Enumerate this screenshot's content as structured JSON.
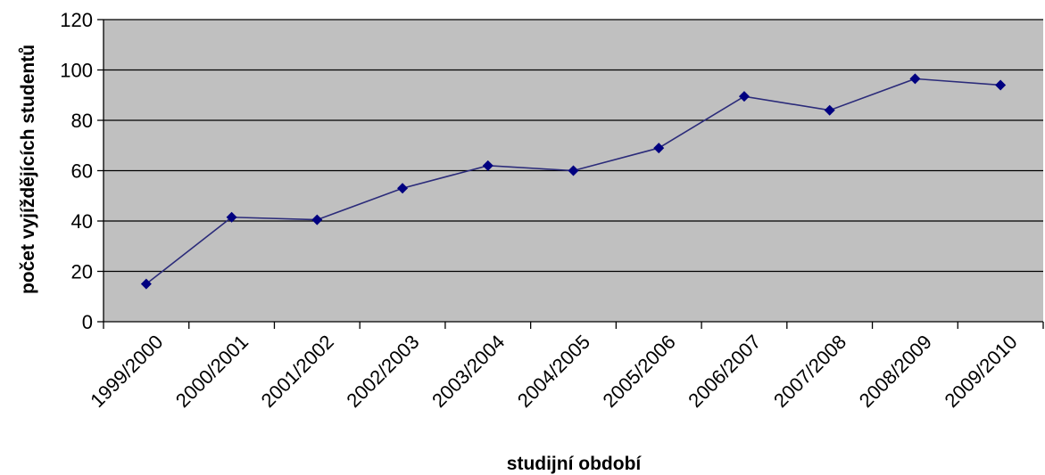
{
  "chart_data": {
    "type": "line",
    "title": "",
    "xlabel": "studijní období",
    "ylabel": "počet vyjíždějících studentů",
    "categories": [
      "1999/2000",
      "2000/2001",
      "2001/2002",
      "2002/2003",
      "2003/2004",
      "2004/2005",
      "2005/2006",
      "2006/2007",
      "2007/2008",
      "2008/2009",
      "2009/2010"
    ],
    "series": [
      {
        "values": [
          15,
          41.5,
          40.5,
          53,
          62,
          60,
          69,
          89.5,
          84,
          96.5,
          94
        ]
      }
    ],
    "ylim": [
      0,
      120
    ],
    "yticks": [
      0,
      20,
      40,
      60,
      80,
      100,
      120
    ],
    "ytick_labels": [
      "0",
      "20",
      "40",
      "60",
      "80",
      "100",
      "120"
    ],
    "grid": "horizontal",
    "legend": "none",
    "colors": {
      "plot_background": "#c0c0c0",
      "line": "#2b2b7a",
      "marker": "#000080",
      "gridline": "#000000"
    },
    "marker": "diamond"
  }
}
